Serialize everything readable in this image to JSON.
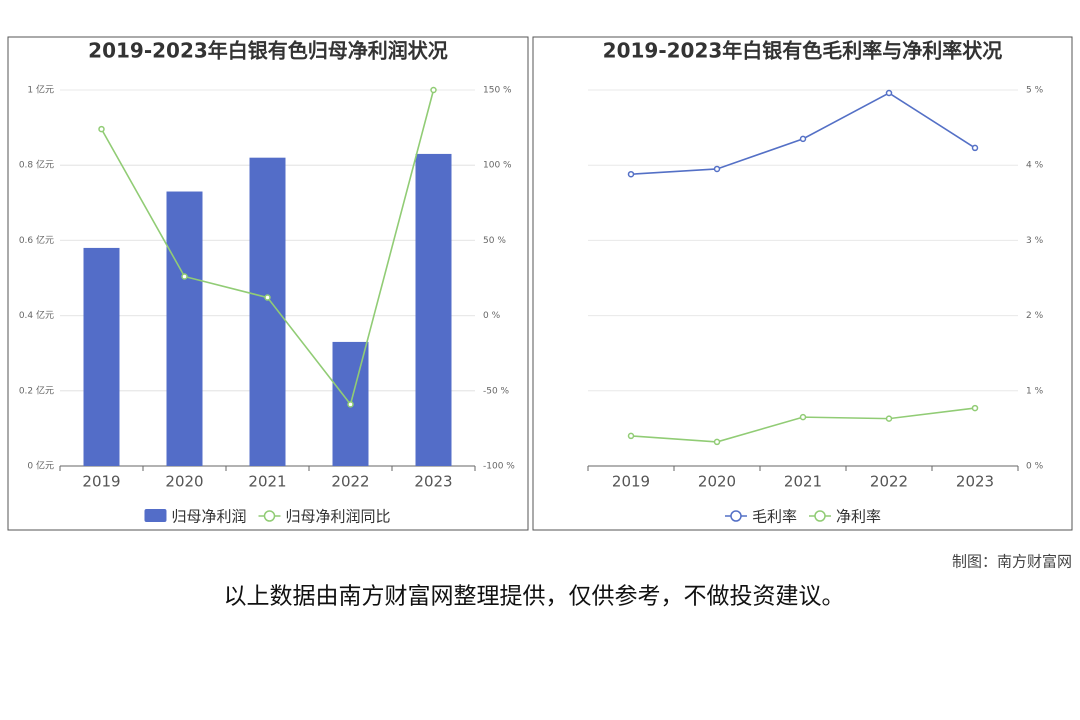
{
  "chart_data": [
    {
      "type": "bar",
      "title": "2019-2023年白银有色归母净利润状况",
      "categories": [
        "2019",
        "2020",
        "2021",
        "2022",
        "2023"
      ],
      "series": [
        {
          "name": "归母净利润",
          "type": "bar",
          "color": "#536dc8",
          "values": [
            0.58,
            0.73,
            0.82,
            0.33,
            0.83
          ]
        },
        {
          "name": "归母净利润同比",
          "type": "line",
          "axis": "y2",
          "color": "#91cc75",
          "values": [
            124,
            26,
            12,
            -59,
            150
          ]
        }
      ],
      "ylim": [
        0,
        1
      ],
      "yticks": [
        {
          "value": 0,
          "label": "0 亿元"
        },
        {
          "value": 0.2,
          "label": "0.2 亿元"
        },
        {
          "value": 0.4,
          "label": "0.4 亿元"
        },
        {
          "value": 0.6,
          "label": "0.6 亿元"
        },
        {
          "value": 0.8,
          "label": "0.8 亿元"
        },
        {
          "value": 1,
          "label": "1 亿元"
        }
      ],
      "y2lim": [
        -100,
        150
      ],
      "y2ticks": [
        {
          "value": -100,
          "label": "-100 %"
        },
        {
          "value": -50,
          "label": "-50 %"
        },
        {
          "value": 0,
          "label": "0 %"
        },
        {
          "value": 50,
          "label": "50 %"
        },
        {
          "value": 100,
          "label": "100 %"
        },
        {
          "value": 150,
          "label": "150 %"
        }
      ],
      "grid": true
    },
    {
      "type": "line",
      "title": "2019-2023年白银有色毛利率与净利率状况",
      "categories": [
        "2019",
        "2020",
        "2021",
        "2022",
        "2023"
      ],
      "series": [
        {
          "name": "毛利率",
          "color": "#5470c6",
          "values": [
            3.88,
            3.95,
            4.35,
            4.96,
            4.23
          ]
        },
        {
          "name": "净利率",
          "color": "#91cc75",
          "values": [
            0.4,
            0.32,
            0.65,
            0.63,
            0.77
          ]
        }
      ],
      "y2lim": [
        0,
        5
      ],
      "y2ticks": [
        {
          "value": 0,
          "label": "0 %"
        },
        {
          "value": 1,
          "label": "1 %"
        },
        {
          "value": 2,
          "label": "2 %"
        },
        {
          "value": 3,
          "label": "3 %"
        },
        {
          "value": 4,
          "label": "4 %"
        },
        {
          "value": 5,
          "label": "5 %"
        }
      ],
      "grid": true
    }
  ],
  "credit": "制图：南方财富网",
  "disclaimer": "以上数据由南方财富网整理提供，仅供参考，不做投资建议。"
}
